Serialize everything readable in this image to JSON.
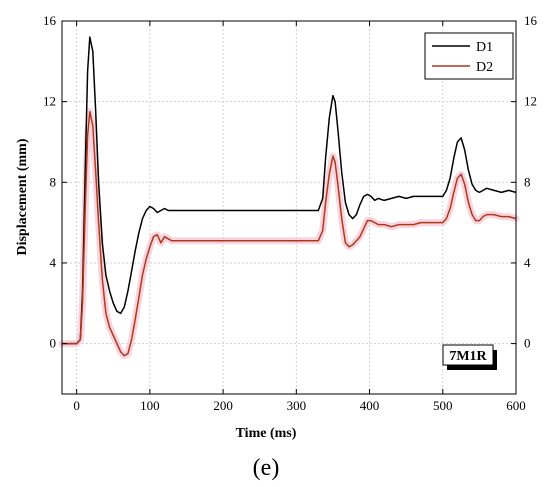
{
  "panel_label": "(e)",
  "badge": "7M1R",
  "colors": {
    "D1": "#000000",
    "D2": "#b0391c",
    "D2_band": "#f5c6d3",
    "grid": "#c8c8c8"
  },
  "chart_data": {
    "type": "line",
    "xlabel": "Time (ms)",
    "ylabel": "Displacement (mm)",
    "xlim": [
      -20,
      600
    ],
    "ylim": [
      -2.5,
      16
    ],
    "xticks": [
      0,
      100,
      200,
      300,
      400,
      500,
      600
    ],
    "yticks": [
      0,
      4,
      8,
      12,
      16
    ],
    "legend": "top-right",
    "grid": true,
    "series": [
      {
        "name": "D1",
        "x": [
          -20,
          0,
          5,
          8,
          12,
          15,
          18,
          22,
          26,
          30,
          35,
          40,
          45,
          50,
          55,
          60,
          65,
          70,
          75,
          80,
          85,
          90,
          95,
          100,
          105,
          110,
          115,
          120,
          125,
          130,
          140,
          150,
          200,
          250,
          300,
          330,
          336,
          340,
          345,
          350,
          353,
          357,
          362,
          367,
          372,
          377,
          382,
          387,
          392,
          397,
          402,
          407,
          412,
          420,
          430,
          440,
          450,
          460,
          470,
          480,
          490,
          500,
          505,
          510,
          515,
          520,
          525,
          530,
          535,
          540,
          545,
          550,
          555,
          560,
          570,
          580,
          590,
          600
        ],
        "y": [
          0,
          0,
          0.2,
          2.5,
          9.0,
          13.5,
          15.2,
          14.5,
          11.5,
          8.0,
          5.0,
          3.4,
          2.6,
          2.0,
          1.6,
          1.5,
          1.8,
          2.6,
          3.6,
          4.6,
          5.5,
          6.2,
          6.6,
          6.8,
          6.7,
          6.5,
          6.6,
          6.7,
          6.6,
          6.6,
          6.6,
          6.6,
          6.6,
          6.6,
          6.6,
          6.6,
          7.2,
          9.2,
          11.2,
          12.3,
          12.0,
          10.5,
          8.5,
          7.0,
          6.4,
          6.2,
          6.4,
          6.9,
          7.3,
          7.4,
          7.3,
          7.1,
          7.2,
          7.1,
          7.2,
          7.3,
          7.2,
          7.3,
          7.3,
          7.3,
          7.3,
          7.3,
          7.6,
          8.2,
          9.2,
          10.0,
          10.2,
          9.6,
          8.6,
          7.9,
          7.6,
          7.5,
          7.6,
          7.7,
          7.6,
          7.5,
          7.6,
          7.5
        ]
      },
      {
        "name": "D2",
        "x": [
          -20,
          0,
          5,
          8,
          12,
          15,
          18,
          22,
          26,
          30,
          35,
          40,
          45,
          50,
          55,
          60,
          65,
          70,
          75,
          80,
          85,
          90,
          95,
          100,
          105,
          110,
          115,
          120,
          125,
          130,
          140,
          150,
          200,
          250,
          300,
          330,
          336,
          340,
          345,
          350,
          353,
          357,
          362,
          367,
          372,
          377,
          382,
          387,
          392,
          397,
          402,
          407,
          412,
          420,
          430,
          440,
          450,
          460,
          470,
          480,
          490,
          500,
          505,
          510,
          515,
          520,
          525,
          530,
          535,
          540,
          545,
          550,
          555,
          560,
          570,
          580,
          590,
          600
        ],
        "y": [
          0,
          0,
          0.2,
          2.0,
          7.0,
          10.3,
          11.5,
          10.8,
          8.5,
          6.0,
          3.2,
          1.5,
          0.8,
          0.4,
          0.0,
          -0.4,
          -0.6,
          -0.5,
          0.2,
          1.2,
          2.3,
          3.4,
          4.2,
          4.8,
          5.3,
          5.4,
          5.0,
          5.3,
          5.2,
          5.1,
          5.1,
          5.1,
          5.1,
          5.1,
          5.1,
          5.1,
          5.6,
          7.0,
          8.4,
          9.3,
          9.0,
          7.8,
          6.2,
          5.0,
          4.8,
          4.9,
          5.1,
          5.3,
          5.7,
          6.1,
          6.1,
          6.0,
          5.9,
          5.9,
          5.8,
          5.9,
          5.9,
          5.9,
          6.0,
          6.0,
          6.0,
          6.0,
          6.2,
          6.7,
          7.5,
          8.2,
          8.4,
          7.9,
          7.0,
          6.4,
          6.1,
          6.1,
          6.3,
          6.4,
          6.4,
          6.3,
          6.3,
          6.2
        ]
      }
    ]
  }
}
